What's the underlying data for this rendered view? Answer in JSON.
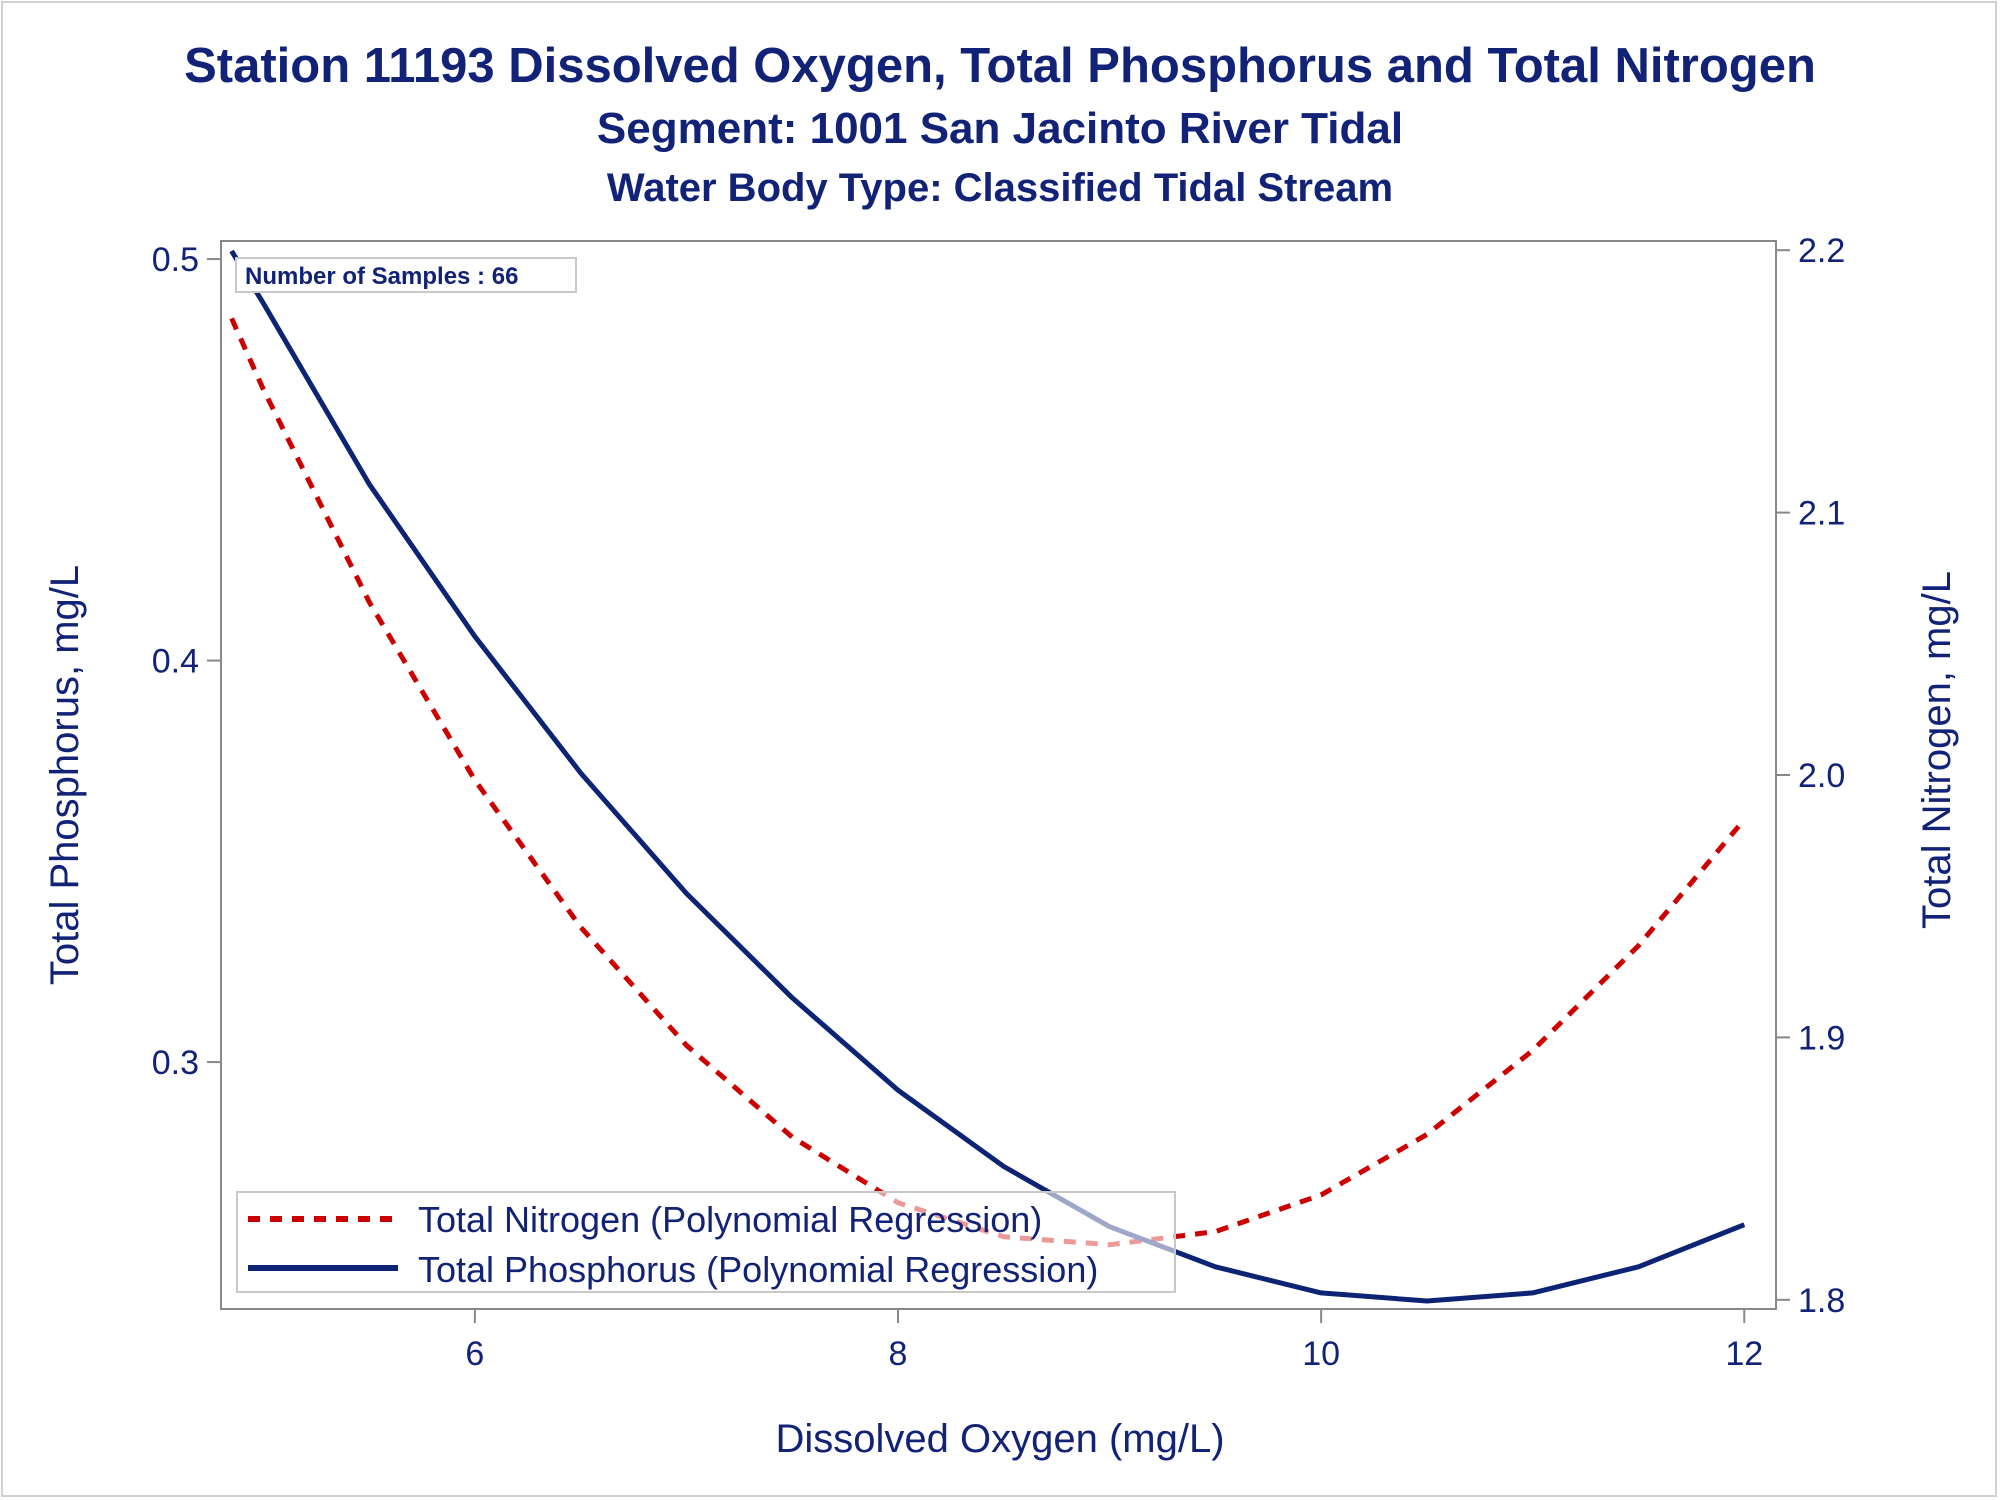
{
  "titles": {
    "line1": "Station 11193  Dissolved Oxygen, Total Phosphorus and Total Nitrogen",
    "line2": "Segment: 1001  San Jacinto River Tidal",
    "line3": "Water Body Type: Classified Tidal Stream"
  },
  "colors": {
    "text": "#112277",
    "nitrogen_line": "#cc0000",
    "phosphorus_line": "#0d2475",
    "axis": "#888888"
  },
  "chart_data": {
    "type": "line",
    "title": "Station 11193  Dissolved Oxygen, Total Phosphorus and Total Nitrogen",
    "xlabel": "Dissolved Oxygen (mg/L)",
    "ylabel": "Total Phosphorus, mg/L",
    "y2label": "Total Nitrogen, mg/L",
    "xlim": [
      4.8,
      12.15
    ],
    "ylim": [
      0.2385,
      0.5045
    ],
    "y2lim": [
      1.7965,
      2.2035
    ],
    "x_ticks": [
      6,
      8,
      10,
      12
    ],
    "y_ticks": [
      0.3,
      0.4,
      0.5
    ],
    "y2_ticks": [
      1.8,
      1.9,
      2.0,
      2.1,
      2.2
    ],
    "x_tick_labels": [
      "6",
      "8",
      "10",
      "12"
    ],
    "y_tick_labels": [
      "0.3",
      "0.4",
      "0.5"
    ],
    "y2_tick_labels": [
      "1.8",
      "1.9",
      "2.0",
      "2.1",
      "2.2"
    ],
    "annotation": "Number of Samples : 66",
    "grid": false,
    "legend_position": "bottom-left",
    "series": [
      {
        "name": "Total Nitrogen (Polynomial Regression)",
        "axis": "right",
        "style": "dashed",
        "color": "#cc0000",
        "x": [
          4.85,
          5.0,
          5.5,
          6.0,
          6.5,
          7.0,
          7.5,
          8.0,
          8.5,
          9.0,
          9.5,
          10.0,
          10.5,
          11.0,
          11.5,
          12.0
        ],
        "y": [
          2.174,
          2.147,
          2.066,
          1.998,
          1.942,
          1.897,
          1.862,
          1.837,
          1.824,
          1.821,
          1.826,
          1.84,
          1.863,
          1.895,
          1.935,
          1.983
        ]
      },
      {
        "name": "Total Phosphorus (Polynomial Regression)",
        "axis": "left",
        "style": "solid",
        "color": "#0d2475",
        "x": [
          4.85,
          5.0,
          5.5,
          6.0,
          6.5,
          7.0,
          7.5,
          8.0,
          8.5,
          9.0,
          9.5,
          10.0,
          10.5,
          11.0,
          11.5,
          12.0
        ],
        "y": [
          0.502,
          0.489,
          0.444,
          0.406,
          0.372,
          0.342,
          0.316,
          0.293,
          0.274,
          0.259,
          0.249,
          0.2425,
          0.2405,
          0.2425,
          0.249,
          0.2595
        ]
      }
    ]
  }
}
